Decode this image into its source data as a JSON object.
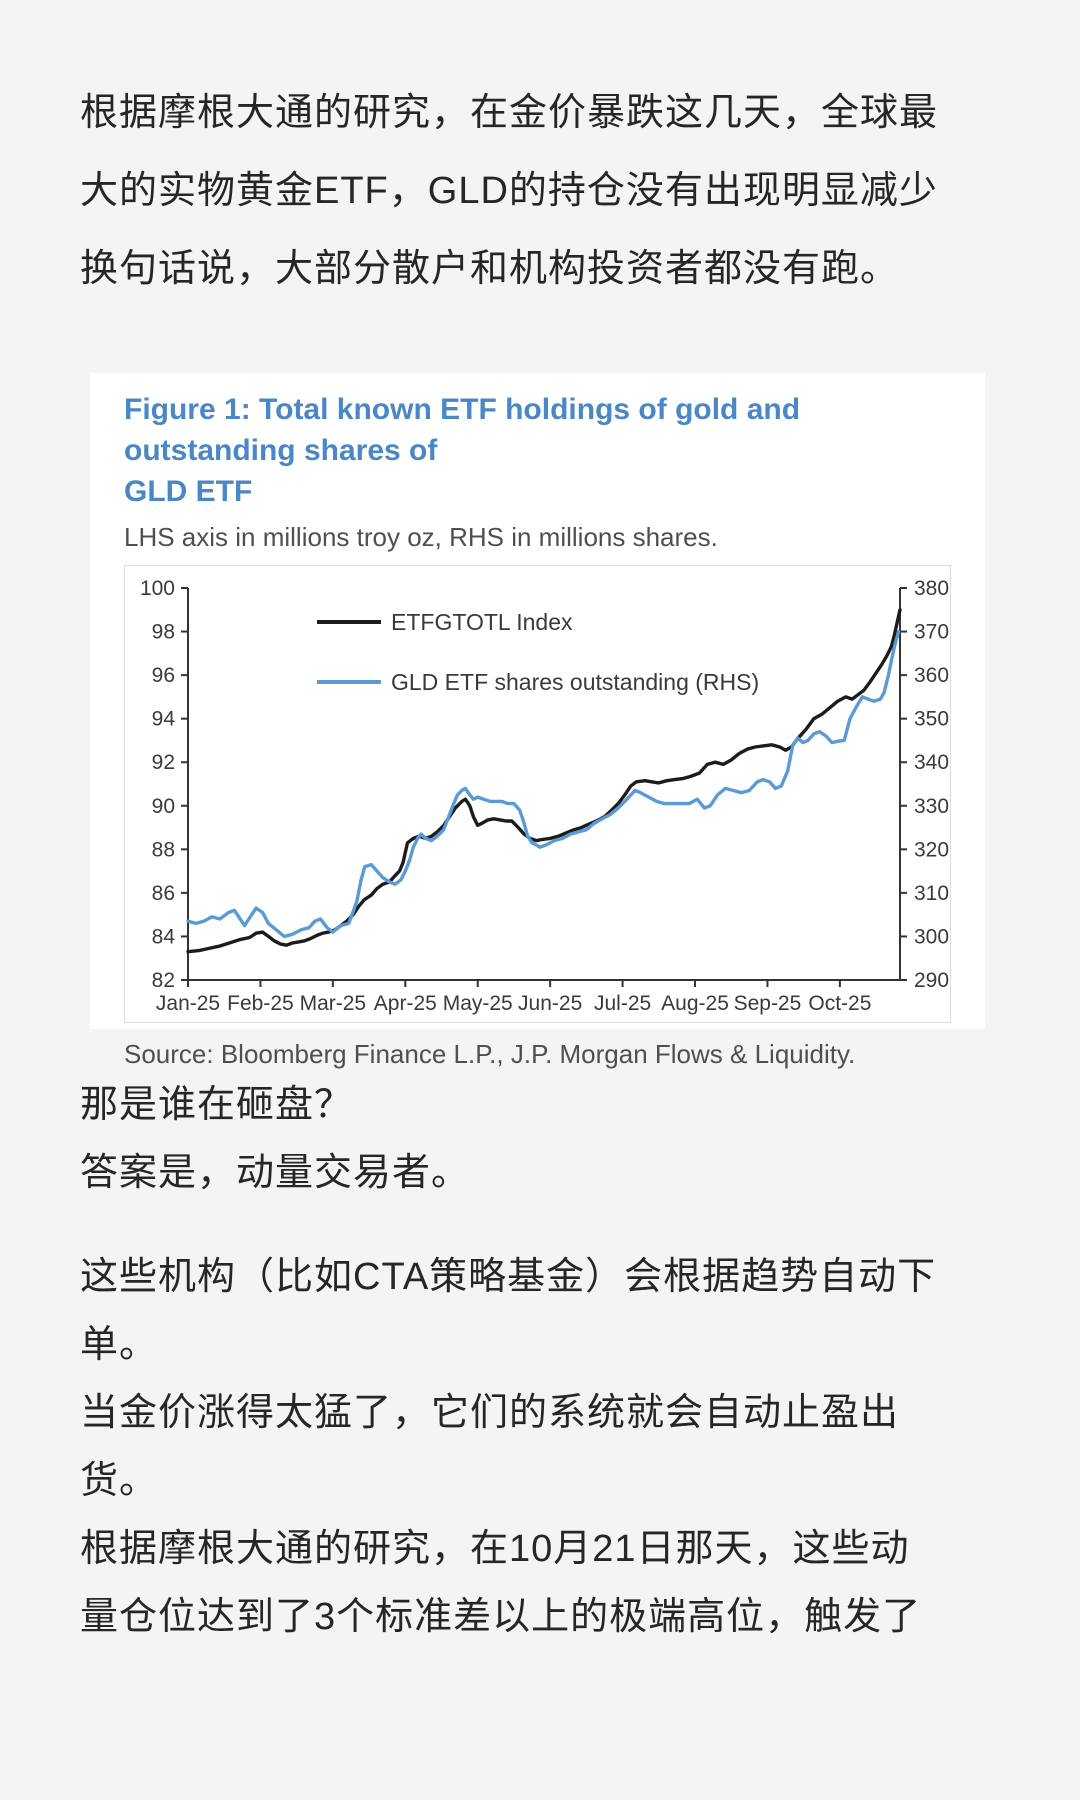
{
  "page": {
    "background": "#f4f4f4",
    "text_color": "#262626",
    "accent_blue": "#4a87c6"
  },
  "paragraphs_top": [
    {
      "lines": [
        "根据摩根大通的研究，在金价暴跌这几天，全球最",
        "大的实物黄金ETF，GLD的持仓没有出现明显减少"
      ]
    },
    {
      "lines": [
        "换句话说，大部分散户和机构投资者都没有跑。"
      ]
    }
  ],
  "figure": {
    "title_line1": "Figure 1: Total known ETF holdings of gold and outstanding shares of",
    "title_line2": "GLD ETF",
    "subtitle": "LHS axis in millions troy oz, RHS in millions shares.",
    "source": "Source: Bloomberg Finance L.P., J.P. Morgan Flows & Liquidity."
  },
  "chart_data": {
    "type": "line",
    "title": "Figure 1: Total known ETF holdings of gold and outstanding shares of GLD ETF",
    "subtitle": "LHS axis in millions troy oz, RHS in millions shares.",
    "source": "Source: Bloomberg Finance L.P., J.P. Morgan Flows & Liquidity.",
    "grid": false,
    "legend_position": "inside-top-left",
    "x_tick_labels": [
      "Jan-25",
      "Feb-25",
      "Mar-25",
      "Apr-25",
      "May-25",
      "Jun-25",
      "Jul-25",
      "Aug-25",
      "Sep-25",
      "Oct-25"
    ],
    "left_axis": {
      "min": 82,
      "max": 100,
      "ticks": [
        100,
        98,
        96,
        94,
        92,
        90,
        88,
        86,
        84,
        82
      ],
      "label": "millions troy oz"
    },
    "right_axis": {
      "min": 290,
      "max": 380,
      "ticks": [
        380,
        370,
        360,
        350,
        340,
        330,
        320,
        310,
        300,
        290
      ],
      "label": "millions shares"
    },
    "axis_color": "#333333",
    "series": [
      {
        "name": "ETFGTOTL Index",
        "axis": "left",
        "color": "#1c1c1c",
        "points": [
          [
            0,
            83.3
          ],
          [
            0.15,
            83.35
          ],
          [
            0.29,
            83.45
          ],
          [
            0.43,
            83.55
          ],
          [
            0.57,
            83.7
          ],
          [
            0.71,
            83.85
          ],
          [
            0.85,
            83.95
          ],
          [
            0.94,
            84.15
          ],
          [
            1.03,
            84.2
          ],
          [
            1.11,
            84.0
          ],
          [
            1.19,
            83.8
          ],
          [
            1.28,
            83.65
          ],
          [
            1.36,
            83.6
          ],
          [
            1.44,
            83.7
          ],
          [
            1.53,
            83.75
          ],
          [
            1.61,
            83.8
          ],
          [
            1.69,
            83.9
          ],
          [
            1.78,
            84.05
          ],
          [
            1.86,
            84.15
          ],
          [
            1.94,
            84.2
          ],
          [
            2.03,
            84.3
          ],
          [
            2.11,
            84.5
          ],
          [
            2.19,
            84.7
          ],
          [
            2.28,
            85.0
          ],
          [
            2.36,
            85.4
          ],
          [
            2.44,
            85.7
          ],
          [
            2.53,
            85.9
          ],
          [
            2.61,
            86.2
          ],
          [
            2.69,
            86.4
          ],
          [
            2.78,
            86.5
          ],
          [
            2.86,
            86.8
          ],
          [
            2.92,
            87.0
          ],
          [
            2.97,
            87.4
          ],
          [
            3.03,
            88.3
          ],
          [
            3.11,
            88.5
          ],
          [
            3.19,
            88.6
          ],
          [
            3.28,
            88.5
          ],
          [
            3.36,
            88.6
          ],
          [
            3.44,
            88.8
          ],
          [
            3.53,
            89.1
          ],
          [
            3.61,
            89.5
          ],
          [
            3.69,
            89.9
          ],
          [
            3.78,
            90.2
          ],
          [
            3.83,
            90.3
          ],
          [
            3.89,
            90.0
          ],
          [
            3.94,
            89.5
          ],
          [
            4.0,
            89.1
          ],
          [
            4.06,
            89.2
          ],
          [
            4.14,
            89.35
          ],
          [
            4.22,
            89.4
          ],
          [
            4.31,
            89.35
          ],
          [
            4.39,
            89.3
          ],
          [
            4.47,
            89.3
          ],
          [
            4.56,
            89.0
          ],
          [
            4.64,
            88.7
          ],
          [
            4.72,
            88.5
          ],
          [
            4.81,
            88.4
          ],
          [
            4.89,
            88.45
          ],
          [
            5.0,
            88.5
          ],
          [
            5.11,
            88.6
          ],
          [
            5.22,
            88.75
          ],
          [
            5.33,
            88.9
          ],
          [
            5.43,
            89.0
          ],
          [
            5.53,
            89.15
          ],
          [
            5.64,
            89.3
          ],
          [
            5.75,
            89.5
          ],
          [
            5.85,
            89.8
          ],
          [
            5.94,
            90.1
          ],
          [
            6.03,
            90.5
          ],
          [
            6.11,
            90.9
          ],
          [
            6.19,
            91.1
          ],
          [
            6.31,
            91.15
          ],
          [
            6.4,
            91.1
          ],
          [
            6.5,
            91.05
          ],
          [
            6.61,
            91.15
          ],
          [
            6.72,
            91.2
          ],
          [
            6.83,
            91.25
          ],
          [
            6.94,
            91.35
          ],
          [
            7.06,
            91.5
          ],
          [
            7.17,
            91.9
          ],
          [
            7.28,
            92.0
          ],
          [
            7.39,
            91.9
          ],
          [
            7.5,
            92.1
          ],
          [
            7.61,
            92.4
          ],
          [
            7.72,
            92.6
          ],
          [
            7.83,
            92.7
          ],
          [
            7.94,
            92.75
          ],
          [
            8.06,
            92.8
          ],
          [
            8.17,
            92.7
          ],
          [
            8.25,
            92.55
          ],
          [
            8.33,
            92.7
          ],
          [
            8.42,
            93.1
          ],
          [
            8.53,
            93.5
          ],
          [
            8.64,
            94.0
          ],
          [
            8.75,
            94.2
          ],
          [
            8.86,
            94.5
          ],
          [
            8.97,
            94.8
          ],
          [
            9.08,
            95.0
          ],
          [
            9.17,
            94.9
          ],
          [
            9.25,
            95.1
          ],
          [
            9.33,
            95.3
          ],
          [
            9.42,
            95.7
          ],
          [
            9.5,
            96.1
          ],
          [
            9.58,
            96.5
          ],
          [
            9.65,
            96.9
          ],
          [
            9.71,
            97.3
          ],
          [
            9.75,
            97.8
          ],
          [
            9.79,
            98.4
          ],
          [
            9.83,
            99.0
          ]
        ]
      },
      {
        "name": "GLD ETF shares outstanding (RHS)",
        "axis": "right",
        "color": "#5b9bd5",
        "points": [
          [
            0,
            303.5
          ],
          [
            0.11,
            303
          ],
          [
            0.22,
            303.5
          ],
          [
            0.33,
            304.5
          ],
          [
            0.44,
            304
          ],
          [
            0.56,
            305.5
          ],
          [
            0.64,
            306
          ],
          [
            0.72,
            304
          ],
          [
            0.78,
            302.5
          ],
          [
            0.86,
            304.5
          ],
          [
            0.94,
            306.5
          ],
          [
            1.03,
            305.5
          ],
          [
            1.11,
            303
          ],
          [
            1.22,
            301.5
          ],
          [
            1.33,
            300
          ],
          [
            1.44,
            300.5
          ],
          [
            1.56,
            301.5
          ],
          [
            1.67,
            302
          ],
          [
            1.75,
            303.5
          ],
          [
            1.83,
            304
          ],
          [
            1.92,
            302
          ],
          [
            2.0,
            301
          ],
          [
            2.11,
            302.5
          ],
          [
            2.22,
            303
          ],
          [
            2.33,
            308
          ],
          [
            2.39,
            313
          ],
          [
            2.44,
            316
          ],
          [
            2.53,
            316.5
          ],
          [
            2.61,
            315
          ],
          [
            2.69,
            313.5
          ],
          [
            2.78,
            312.5
          ],
          [
            2.86,
            312
          ],
          [
            2.94,
            313
          ],
          [
            3.0,
            315
          ],
          [
            3.06,
            317.5
          ],
          [
            3.11,
            320.5
          ],
          [
            3.17,
            322.5
          ],
          [
            3.22,
            323.5
          ],
          [
            3.28,
            322.5
          ],
          [
            3.36,
            322
          ],
          [
            3.44,
            323
          ],
          [
            3.53,
            324.5
          ],
          [
            3.61,
            328
          ],
          [
            3.67,
            330.5
          ],
          [
            3.72,
            332.5
          ],
          [
            3.78,
            333.5
          ],
          [
            3.83,
            334
          ],
          [
            3.89,
            332.5
          ],
          [
            3.94,
            331.5
          ],
          [
            4.0,
            332
          ],
          [
            4.08,
            331.5
          ],
          [
            4.17,
            331
          ],
          [
            4.25,
            331
          ],
          [
            4.33,
            331
          ],
          [
            4.42,
            330.5
          ],
          [
            4.5,
            330.5
          ],
          [
            4.58,
            329
          ],
          [
            4.64,
            326
          ],
          [
            4.69,
            323
          ],
          [
            4.75,
            321.5
          ],
          [
            4.81,
            321
          ],
          [
            4.86,
            320.5
          ],
          [
            4.94,
            321
          ],
          [
            5.06,
            322
          ],
          [
            5.17,
            322.5
          ],
          [
            5.28,
            323.5
          ],
          [
            5.39,
            324
          ],
          [
            5.5,
            324.5
          ],
          [
            5.61,
            326
          ],
          [
            5.72,
            327
          ],
          [
            5.83,
            328
          ],
          [
            5.94,
            329.5
          ],
          [
            6.06,
            331.5
          ],
          [
            6.17,
            333.5
          ],
          [
            6.25,
            333
          ],
          [
            6.36,
            332
          ],
          [
            6.47,
            331
          ],
          [
            6.58,
            330.5
          ],
          [
            6.69,
            330.5
          ],
          [
            6.81,
            330.5
          ],
          [
            6.92,
            330.5
          ],
          [
            7.03,
            331.5
          ],
          [
            7.13,
            329.5
          ],
          [
            7.21,
            330
          ],
          [
            7.31,
            332.5
          ],
          [
            7.42,
            334
          ],
          [
            7.53,
            333.5
          ],
          [
            7.64,
            333
          ],
          [
            7.75,
            333.5
          ],
          [
            7.86,
            335.5
          ],
          [
            7.94,
            336
          ],
          [
            8.03,
            335.5
          ],
          [
            8.11,
            334
          ],
          [
            8.19,
            334.5
          ],
          [
            8.28,
            338
          ],
          [
            8.35,
            344
          ],
          [
            8.42,
            345.5
          ],
          [
            8.49,
            344.5
          ],
          [
            8.56,
            345
          ],
          [
            8.64,
            346.5
          ],
          [
            8.72,
            347
          ],
          [
            8.81,
            346
          ],
          [
            8.89,
            344.5
          ],
          [
            8.97,
            344.8
          ],
          [
            9.06,
            345
          ],
          [
            9.14,
            350
          ],
          [
            9.22,
            352.5
          ],
          [
            9.31,
            355
          ],
          [
            9.39,
            354.5
          ],
          [
            9.47,
            354
          ],
          [
            9.56,
            354.5
          ],
          [
            9.61,
            356
          ],
          [
            9.67,
            360
          ],
          [
            9.72,
            364
          ],
          [
            9.76,
            367
          ],
          [
            9.81,
            370
          ]
        ]
      }
    ]
  },
  "paragraphs_bottom": [
    {
      "lines": [
        "那是谁在砸盘？",
        "答案是，动量交易者。"
      ]
    },
    {
      "lines": [
        "这些机构（比如CTA策略基金）会根据趋势自动下",
        "单。",
        "当金价涨得太猛了，它们的系统就会自动止盈出",
        "货。",
        "根据摩根大通的研究，在10月21日那天，这些动",
        "量仓位达到了3个标准差以上的极端高位，触发了"
      ]
    }
  ]
}
